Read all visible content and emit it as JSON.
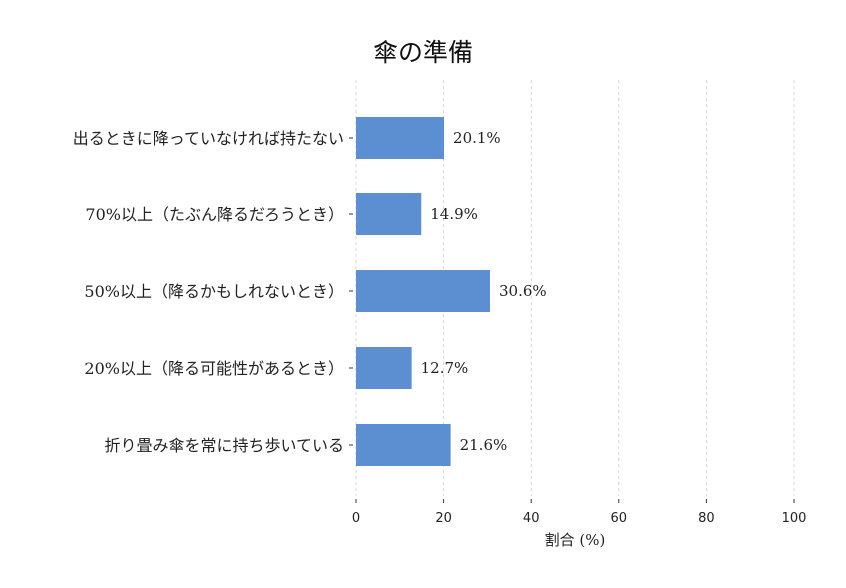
{
  "chart_data": {
    "type": "bar",
    "orientation": "horizontal",
    "title": "傘の準備",
    "xlabel": "割合 (%)",
    "ylabel": "",
    "xlim": [
      0,
      100
    ],
    "xticks": [
      0,
      20,
      40,
      60,
      80,
      100
    ],
    "grid": true,
    "categories": [
      "出るときに降っていなければ持たない",
      "70%以上（たぶん降るだろうとき）",
      "50%以上（降るかもしれないとき）",
      "20%以上（降る可能性があるとき）",
      "折り畳み傘を常に持ち歩いている"
    ],
    "values": [
      20.1,
      14.9,
      30.6,
      12.7,
      21.6
    ],
    "value_labels": [
      "20.1%",
      "14.9%",
      "30.6%",
      "12.7%",
      "21.6%"
    ],
    "bar_color": "#5b8fd1"
  }
}
